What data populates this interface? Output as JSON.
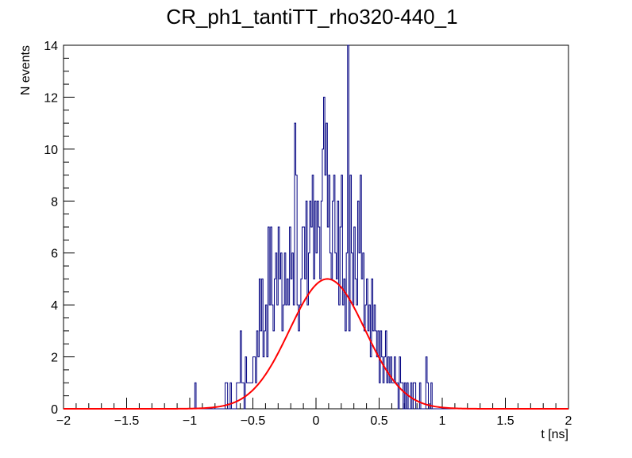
{
  "chart_data": {
    "type": "histogram",
    "title": "CR_ph1_tantiTT_rho320-440_1",
    "xlabel": "t [ns]",
    "ylabel": "N events",
    "xlim": [
      -2,
      2
    ],
    "ylim": [
      0,
      14
    ],
    "x_ticks": [
      "−2",
      "−1.5",
      "−1",
      "−0.5",
      "0",
      "0.5",
      "1",
      "1.5",
      "2"
    ],
    "y_ticks": [
      "0",
      "2",
      "4",
      "6",
      "8",
      "10",
      "12",
      "14"
    ],
    "grid": false,
    "legend": "none",
    "colors": {
      "histogram": "#000080",
      "fit": "#ff0000"
    },
    "histogram": {
      "bin_width": 0.01,
      "x_start": -2.0,
      "counts_nonzero": [
        {
          "x": -0.96,
          "y": 1
        },
        {
          "x": -0.72,
          "y": 1
        },
        {
          "x": -0.71,
          "y": 1
        },
        {
          "x": -0.68,
          "y": 1
        },
        {
          "x": -0.63,
          "y": 1
        },
        {
          "x": -0.62,
          "y": 1
        },
        {
          "x": -0.61,
          "y": 1
        },
        {
          "x": -0.6,
          "y": 3
        },
        {
          "x": -0.59,
          "y": 1
        },
        {
          "x": -0.58,
          "y": 1
        },
        {
          "x": -0.56,
          "y": 2
        },
        {
          "x": -0.55,
          "y": 1
        },
        {
          "x": -0.54,
          "y": 1
        },
        {
          "x": -0.53,
          "y": 1
        },
        {
          "x": -0.52,
          "y": 1
        },
        {
          "x": -0.51,
          "y": 1
        },
        {
          "x": -0.5,
          "y": 2
        },
        {
          "x": -0.49,
          "y": 2
        },
        {
          "x": -0.48,
          "y": 1
        },
        {
          "x": -0.47,
          "y": 3
        },
        {
          "x": -0.46,
          "y": 2
        },
        {
          "x": -0.45,
          "y": 5
        },
        {
          "x": -0.44,
          "y": 3
        },
        {
          "x": -0.43,
          "y": 5
        },
        {
          "x": -0.42,
          "y": 2
        },
        {
          "x": -0.41,
          "y": 3
        },
        {
          "x": -0.4,
          "y": 4
        },
        {
          "x": -0.39,
          "y": 2
        },
        {
          "x": -0.38,
          "y": 7
        },
        {
          "x": -0.37,
          "y": 4
        },
        {
          "x": -0.36,
          "y": 7
        },
        {
          "x": -0.35,
          "y": 4
        },
        {
          "x": -0.34,
          "y": 3
        },
        {
          "x": -0.33,
          "y": 5
        },
        {
          "x": -0.32,
          "y": 6
        },
        {
          "x": -0.31,
          "y": 4
        },
        {
          "x": -0.3,
          "y": 7
        },
        {
          "x": -0.29,
          "y": 5
        },
        {
          "x": -0.28,
          "y": 6
        },
        {
          "x": -0.27,
          "y": 3
        },
        {
          "x": -0.26,
          "y": 4
        },
        {
          "x": -0.25,
          "y": 6
        },
        {
          "x": -0.24,
          "y": 4
        },
        {
          "x": -0.23,
          "y": 5
        },
        {
          "x": -0.22,
          "y": 4
        },
        {
          "x": -0.21,
          "y": 7
        },
        {
          "x": -0.2,
          "y": 5
        },
        {
          "x": -0.19,
          "y": 6
        },
        {
          "x": -0.18,
          "y": 4
        },
        {
          "x": -0.17,
          "y": 11
        },
        {
          "x": -0.16,
          "y": 9
        },
        {
          "x": -0.15,
          "y": 4
        },
        {
          "x": -0.14,
          "y": 3
        },
        {
          "x": -0.13,
          "y": 4
        },
        {
          "x": -0.12,
          "y": 5
        },
        {
          "x": -0.11,
          "y": 7
        },
        {
          "x": -0.1,
          "y": 7
        },
        {
          "x": -0.09,
          "y": 5
        },
        {
          "x": -0.08,
          "y": 8
        },
        {
          "x": -0.07,
          "y": 4
        },
        {
          "x": -0.06,
          "y": 6
        },
        {
          "x": -0.05,
          "y": 8
        },
        {
          "x": -0.04,
          "y": 7
        },
        {
          "x": -0.03,
          "y": 9
        },
        {
          "x": -0.02,
          "y": 5
        },
        {
          "x": -0.01,
          "y": 8
        },
        {
          "x": 0.0,
          "y": 6
        },
        {
          "x": 0.01,
          "y": 8
        },
        {
          "x": 0.02,
          "y": 7
        },
        {
          "x": 0.03,
          "y": 5
        },
        {
          "x": 0.04,
          "y": 8
        },
        {
          "x": 0.05,
          "y": 10
        },
        {
          "x": 0.06,
          "y": 12
        },
        {
          "x": 0.07,
          "y": 9
        },
        {
          "x": 0.08,
          "y": 11
        },
        {
          "x": 0.09,
          "y": 7
        },
        {
          "x": 0.1,
          "y": 9
        },
        {
          "x": 0.11,
          "y": 6
        },
        {
          "x": 0.12,
          "y": 5
        },
        {
          "x": 0.13,
          "y": 8
        },
        {
          "x": 0.14,
          "y": 9
        },
        {
          "x": 0.15,
          "y": 6
        },
        {
          "x": 0.16,
          "y": 5
        },
        {
          "x": 0.17,
          "y": 8
        },
        {
          "x": 0.18,
          "y": 4
        },
        {
          "x": 0.19,
          "y": 7
        },
        {
          "x": 0.2,
          "y": 9
        },
        {
          "x": 0.21,
          "y": 4
        },
        {
          "x": 0.22,
          "y": 5
        },
        {
          "x": 0.23,
          "y": 3
        },
        {
          "x": 0.24,
          "y": 6
        },
        {
          "x": 0.25,
          "y": 14
        },
        {
          "x": 0.26,
          "y": 3
        },
        {
          "x": 0.27,
          "y": 9
        },
        {
          "x": 0.28,
          "y": 6
        },
        {
          "x": 0.29,
          "y": 4
        },
        {
          "x": 0.3,
          "y": 7
        },
        {
          "x": 0.31,
          "y": 5
        },
        {
          "x": 0.32,
          "y": 4
        },
        {
          "x": 0.33,
          "y": 8
        },
        {
          "x": 0.34,
          "y": 6
        },
        {
          "x": 0.35,
          "y": 9
        },
        {
          "x": 0.36,
          "y": 5
        },
        {
          "x": 0.37,
          "y": 6
        },
        {
          "x": 0.38,
          "y": 3
        },
        {
          "x": 0.39,
          "y": 4
        },
        {
          "x": 0.4,
          "y": 5
        },
        {
          "x": 0.41,
          "y": 3
        },
        {
          "x": 0.42,
          "y": 4
        },
        {
          "x": 0.43,
          "y": 2
        },
        {
          "x": 0.44,
          "y": 5
        },
        {
          "x": 0.45,
          "y": 3
        },
        {
          "x": 0.46,
          "y": 4
        },
        {
          "x": 0.47,
          "y": 3
        },
        {
          "x": 0.48,
          "y": 2
        },
        {
          "x": 0.49,
          "y": 3
        },
        {
          "x": 0.5,
          "y": 1
        },
        {
          "x": 0.51,
          "y": 3
        },
        {
          "x": 0.52,
          "y": 2
        },
        {
          "x": 0.53,
          "y": 1
        },
        {
          "x": 0.54,
          "y": 2
        },
        {
          "x": 0.55,
          "y": 3
        },
        {
          "x": 0.56,
          "y": 1
        },
        {
          "x": 0.57,
          "y": 2
        },
        {
          "x": 0.58,
          "y": 1
        },
        {
          "x": 0.59,
          "y": 2
        },
        {
          "x": 0.6,
          "y": 1
        },
        {
          "x": 0.61,
          "y": 1
        },
        {
          "x": 0.62,
          "y": 2
        },
        {
          "x": 0.63,
          "y": 1
        },
        {
          "x": 0.64,
          "y": 1
        },
        {
          "x": 0.66,
          "y": 2
        },
        {
          "x": 0.67,
          "y": 1
        },
        {
          "x": 0.68,
          "y": 1
        },
        {
          "x": 0.7,
          "y": 1
        },
        {
          "x": 0.72,
          "y": 1
        },
        {
          "x": 0.75,
          "y": 1
        },
        {
          "x": 0.77,
          "y": 1
        },
        {
          "x": 0.78,
          "y": 1
        },
        {
          "x": 0.82,
          "y": 1
        },
        {
          "x": 0.87,
          "y": 2
        },
        {
          "x": 0.88,
          "y": 1
        },
        {
          "x": 0.91,
          "y": 1
        }
      ]
    },
    "fit": {
      "function": "gaus",
      "amplitude": 5.0,
      "mean": 0.09,
      "sigma": 0.3
    }
  }
}
